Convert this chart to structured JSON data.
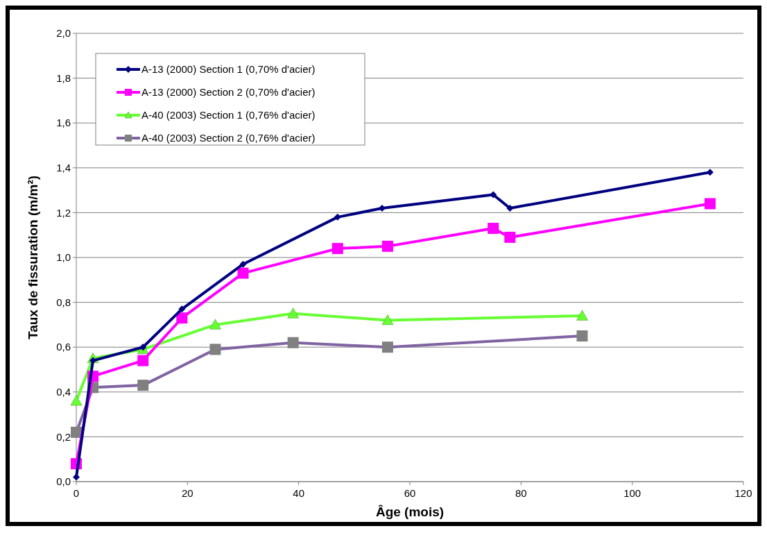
{
  "chart_data": {
    "type": "line",
    "xlabel": "Âge (mois)",
    "ylabel": "Taux de fissuration (m/m²)",
    "xlim": [
      0,
      120
    ],
    "xticks": [
      0,
      20,
      40,
      60,
      80,
      100,
      120
    ],
    "ylim": [
      0,
      2
    ],
    "yticks": [
      {
        "value": 0,
        "label": "0,0"
      },
      {
        "value": 0.2,
        "label": "0,2"
      },
      {
        "value": 0.4,
        "label": "0,4"
      },
      {
        "value": 0.6,
        "label": "0,6"
      },
      {
        "value": 0.8,
        "label": "0,8"
      },
      {
        "value": 1,
        "label": "1,0"
      },
      {
        "value": 1.2,
        "label": "1,2"
      },
      {
        "value": 1.4,
        "label": "1,4"
      },
      {
        "value": 1.6,
        "label": "1,6"
      },
      {
        "value": 1.8,
        "label": "1,8"
      },
      {
        "value": 2,
        "label": "2,0"
      }
    ],
    "grid": "y",
    "legend": "top left",
    "line_style": "solid",
    "series": [
      {
        "name": "A-13 (2000) Section 1 (0,70% d'acier)",
        "color": "#000080",
        "marker": "diamond",
        "x": [
          0,
          3,
          12,
          19,
          30,
          47,
          55,
          75,
          78,
          114
        ],
        "values": [
          0.02,
          0.54,
          0.6,
          0.77,
          0.97,
          1.18,
          1.22,
          1.28,
          1.22,
          1.38
        ]
      },
      {
        "name": "A-13 (2000) Section 2 (0,70% d'acier)",
        "color": "#ff00ff",
        "marker": "square",
        "x": [
          0,
          3,
          12,
          19,
          30,
          47,
          56,
          75,
          78,
          114
        ],
        "values": [
          0.08,
          0.47,
          0.54,
          0.73,
          0.93,
          1.04,
          1.05,
          1.13,
          1.09,
          1.24
        ]
      },
      {
        "name": "A-40 (2003) Section 1 (0,76% d'acier)",
        "color": "#66ff33",
        "marker": "triangle",
        "x": [
          0,
          3,
          12,
          25,
          39,
          56,
          91
        ],
        "values": [
          0.36,
          0.55,
          0.59,
          0.7,
          0.75,
          0.72,
          0.74
        ]
      },
      {
        "name": "A-40 (2003) Section 2 (0,76% d'acier)",
        "color": "#8064a2",
        "marker": "square",
        "x": [
          0,
          3,
          12,
          25,
          39,
          56,
          91
        ],
        "values": [
          0.22,
          0.42,
          0.43,
          0.59,
          0.62,
          0.6,
          0.65
        ]
      }
    ]
  }
}
